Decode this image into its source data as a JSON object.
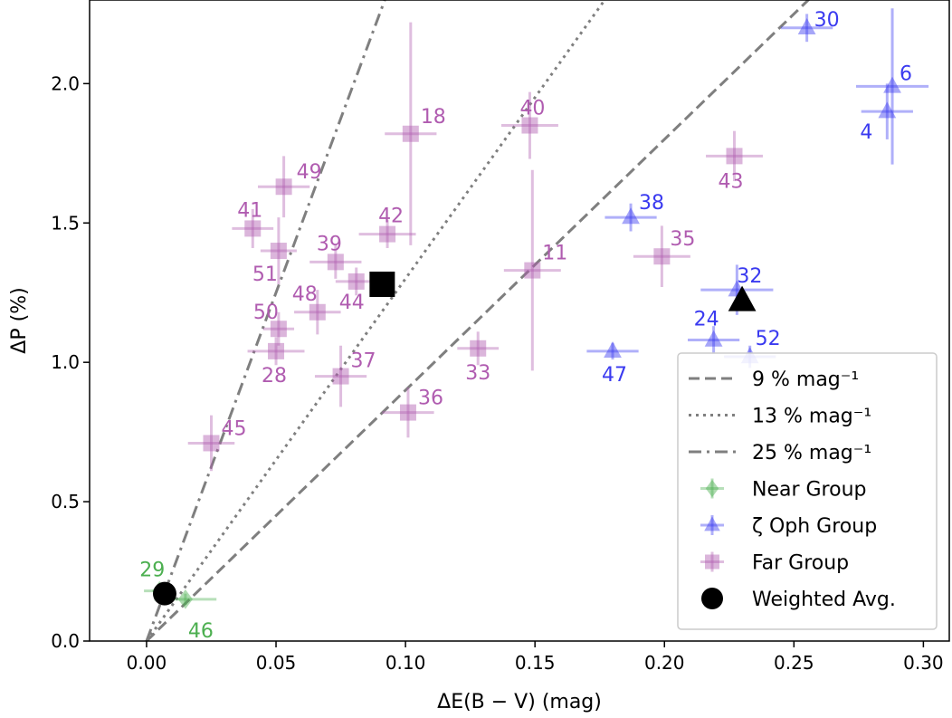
{
  "chart_data": {
    "type": "scatter",
    "xlabel": "ΔE(B − V) (mag)",
    "ylabel": "ΔP (%)",
    "xlim": [
      -0.022,
      0.31
    ],
    "ylim": [
      0.0,
      2.3
    ],
    "x_ticks": [
      "0.00",
      "0.05",
      "0.10",
      "0.15",
      "0.20",
      "0.25",
      "0.30"
    ],
    "y_ticks": [
      "0.0",
      "0.5",
      "1.0",
      "1.5",
      "2.0"
    ],
    "lines": [
      {
        "name": "9 % mag⁻¹",
        "slope": 9,
        "style": "dashed"
      },
      {
        "name": "13 % mag⁻¹",
        "slope": 13,
        "style": "dotted"
      },
      {
        "name": "25 % mag⁻¹",
        "slope": 25,
        "style": "dashdot"
      }
    ],
    "colors": {
      "near": "#4caf50",
      "zeta": "#3a3af0",
      "far": "#b05cb0",
      "line": "#7f7f7f",
      "avg": "#000000"
    },
    "series": [
      {
        "name": "Near Group",
        "marker": "diamond",
        "color": "#4caf50",
        "points": [
          {
            "label": "29",
            "x": 0.005,
            "y": 0.18,
            "xerr": 0.006,
            "yerr": 0.02
          },
          {
            "label": "46",
            "x": 0.015,
            "y": 0.15,
            "xerr": 0.012,
            "yerr": 0.02
          }
        ]
      },
      {
        "name": "ζ Oph Group",
        "marker": "triangle",
        "color": "#3a3af0",
        "points": [
          {
            "label": "30",
            "x": 0.255,
            "y": 2.2,
            "xerr": 0.01,
            "yerr": 0.05
          },
          {
            "label": "6",
            "x": 0.288,
            "y": 1.99,
            "xerr": 0.014,
            "yerr": 0.28
          },
          {
            "label": "4",
            "x": 0.286,
            "y": 1.9,
            "xerr": 0.01,
            "yerr": 0.1
          },
          {
            "label": "38",
            "x": 0.187,
            "y": 1.52,
            "xerr": 0.01,
            "yerr": 0.05
          },
          {
            "label": "32",
            "x": 0.228,
            "y": 1.26,
            "xerr": 0.014,
            "yerr": 0.09
          },
          {
            "label": "24",
            "x": 0.219,
            "y": 1.08,
            "xerr": 0.01,
            "yerr": 0.05
          },
          {
            "label": "52",
            "x": 0.233,
            "y": 1.02,
            "xerr": 0.01,
            "yerr": 0.04
          },
          {
            "label": "47",
            "x": 0.18,
            "y": 1.04,
            "xerr": 0.01,
            "yerr": 0.03
          }
        ]
      },
      {
        "name": "Far Group",
        "marker": "square",
        "color": "#b05cb0",
        "points": [
          {
            "label": "18",
            "x": 0.102,
            "y": 1.82,
            "xerr": 0.01,
            "yerr": 0.4
          },
          {
            "label": "40",
            "x": 0.148,
            "y": 1.85,
            "xerr": 0.011,
            "yerr": 0.12
          },
          {
            "label": "43",
            "x": 0.227,
            "y": 1.74,
            "xerr": 0.011,
            "yerr": 0.09
          },
          {
            "label": "49",
            "x": 0.053,
            "y": 1.63,
            "xerr": 0.01,
            "yerr": 0.11
          },
          {
            "label": "41",
            "x": 0.041,
            "y": 1.48,
            "xerr": 0.008,
            "yerr": 0.07
          },
          {
            "label": "51",
            "x": 0.051,
            "y": 1.4,
            "xerr": 0.007,
            "yerr": 0.12
          },
          {
            "label": "42",
            "x": 0.093,
            "y": 1.46,
            "xerr": 0.011,
            "yerr": 0.05
          },
          {
            "label": "39",
            "x": 0.073,
            "y": 1.36,
            "xerr": 0.01,
            "yerr": 0.06
          },
          {
            "label": "44",
            "x": 0.081,
            "y": 1.29,
            "xerr": 0.008,
            "yerr": 0.05
          },
          {
            "label": "11",
            "x": 0.149,
            "y": 1.33,
            "xerr": 0.011,
            "yerr": 0.36
          },
          {
            "label": "35",
            "x": 0.199,
            "y": 1.38,
            "xerr": 0.011,
            "yerr": 0.11
          },
          {
            "label": "48",
            "x": 0.066,
            "y": 1.18,
            "xerr": 0.009,
            "yerr": 0.08
          },
          {
            "label": "50",
            "x": 0.051,
            "y": 1.12,
            "xerr": 0.006,
            "yerr": 0.06
          },
          {
            "label": "28",
            "x": 0.05,
            "y": 1.04,
            "xerr": 0.011,
            "yerr": 0.05
          },
          {
            "label": "37",
            "x": 0.075,
            "y": 0.95,
            "xerr": 0.01,
            "yerr": 0.11
          },
          {
            "label": "33",
            "x": 0.128,
            "y": 1.05,
            "xerr": 0.008,
            "yerr": 0.06
          },
          {
            "label": "36",
            "x": 0.101,
            "y": 0.82,
            "xerr": 0.01,
            "yerr": 0.09
          },
          {
            "label": "45",
            "x": 0.025,
            "y": 0.71,
            "xerr": 0.009,
            "yerr": 0.1
          }
        ]
      },
      {
        "name": "Weighted Avg.",
        "marker": "avg",
        "color": "#000000",
        "points": [
          {
            "label": "",
            "shape": "circle",
            "x": 0.007,
            "y": 0.17
          },
          {
            "label": "",
            "shape": "square",
            "x": 0.091,
            "y": 1.28
          },
          {
            "label": "",
            "shape": "triangle",
            "x": 0.23,
            "y": 1.22
          }
        ]
      }
    ],
    "legend": {
      "position": "lower-right",
      "entries": [
        "9 % mag⁻¹",
        "13 % mag⁻¹",
        "25 % mag⁻¹",
        "Near Group",
        "ζ Oph Group",
        "Far Group",
        "Weighted Avg."
      ]
    }
  }
}
